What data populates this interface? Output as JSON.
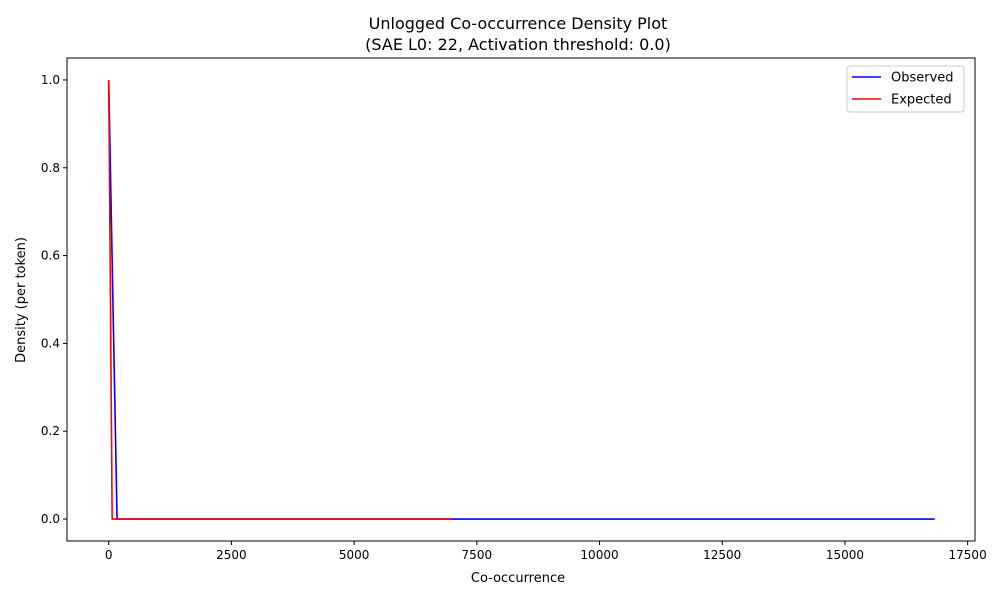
{
  "chart_data": {
    "type": "line",
    "title": "Unlogged Co-occurrence Density Plot",
    "subtitle": "(SAE L0: 22, Activation threshold: 0.0)",
    "xlabel": "Co-occurrence",
    "ylabel": "Density (per token)",
    "xlim": [
      -850,
      17650
    ],
    "ylim": [
      -0.05,
      1.05
    ],
    "xticks": [
      0,
      2500,
      5000,
      7500,
      10000,
      12500,
      15000,
      17500
    ],
    "xtick_labels": [
      "0",
      "2500",
      "5000",
      "7500",
      "10000",
      "12500",
      "15000",
      "17500"
    ],
    "yticks": [
      0.0,
      0.2,
      0.4,
      0.6,
      0.8,
      1.0
    ],
    "ytick_labels": [
      "0.0",
      "0.2",
      "0.4",
      "0.6",
      "0.8",
      "1.0"
    ],
    "grid": false,
    "legend_position": "top-right",
    "series": [
      {
        "name": "Observed",
        "color": "#0000ff",
        "x": [
          0,
          170,
          7000,
          16830
        ],
        "y": [
          1.0,
          0.0,
          0.0,
          0.0
        ]
      },
      {
        "name": "Expected",
        "color": "#ff0000",
        "x": [
          0,
          70,
          7000
        ],
        "y": [
          1.0,
          0.0,
          0.0
        ]
      }
    ]
  }
}
